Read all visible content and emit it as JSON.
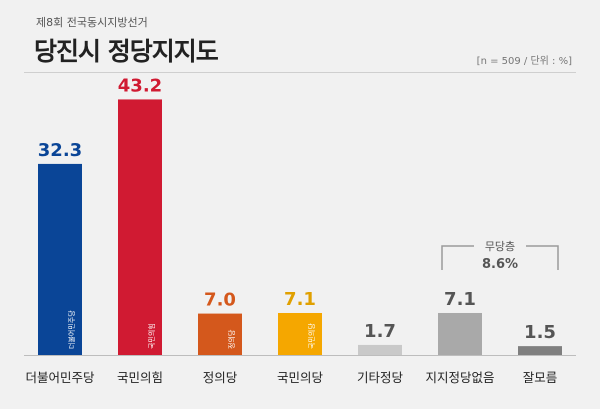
{
  "header": {
    "subtitle": "제8회 전국동시지방선거",
    "title": "당진시 정당지지도",
    "meta": "[n = 509 / 단위 : %]"
  },
  "chart_data": {
    "type": "bar",
    "title": "당진시 정당지지도",
    "categories": [
      "더불어민주당",
      "국민의힘",
      "정의당",
      "국민의당",
      "기타정당",
      "지지정당없음",
      "잘모름"
    ],
    "values": [
      32.3,
      43.2,
      7.0,
      7.1,
      1.7,
      7.1,
      1.5
    ],
    "value_labels": [
      "32.3",
      "43.2",
      "7.0",
      "7.1",
      "1.7",
      "7.1",
      "1.5"
    ],
    "colors": [
      "#0a4597",
      "#d01a32",
      "#d4581c",
      "#f5a700",
      "#c9c9c9",
      "#a9a9a9",
      "#7f7f7f"
    ],
    "label_colors": [
      "#0a4597",
      "#d01a32",
      "#d4581c",
      "#e0a000",
      "#555555",
      "#555555",
      "#555555"
    ],
    "bar_logos": [
      "더불어민주당",
      "국민의힘",
      "정의당",
      "국민의당",
      "",
      "",
      ""
    ],
    "ylim": [
      0,
      50
    ],
    "grid": false,
    "annotation": {
      "title": "무당층",
      "value": "8.6%",
      "spans": [
        "지지정당없음",
        "잘모름"
      ]
    }
  }
}
